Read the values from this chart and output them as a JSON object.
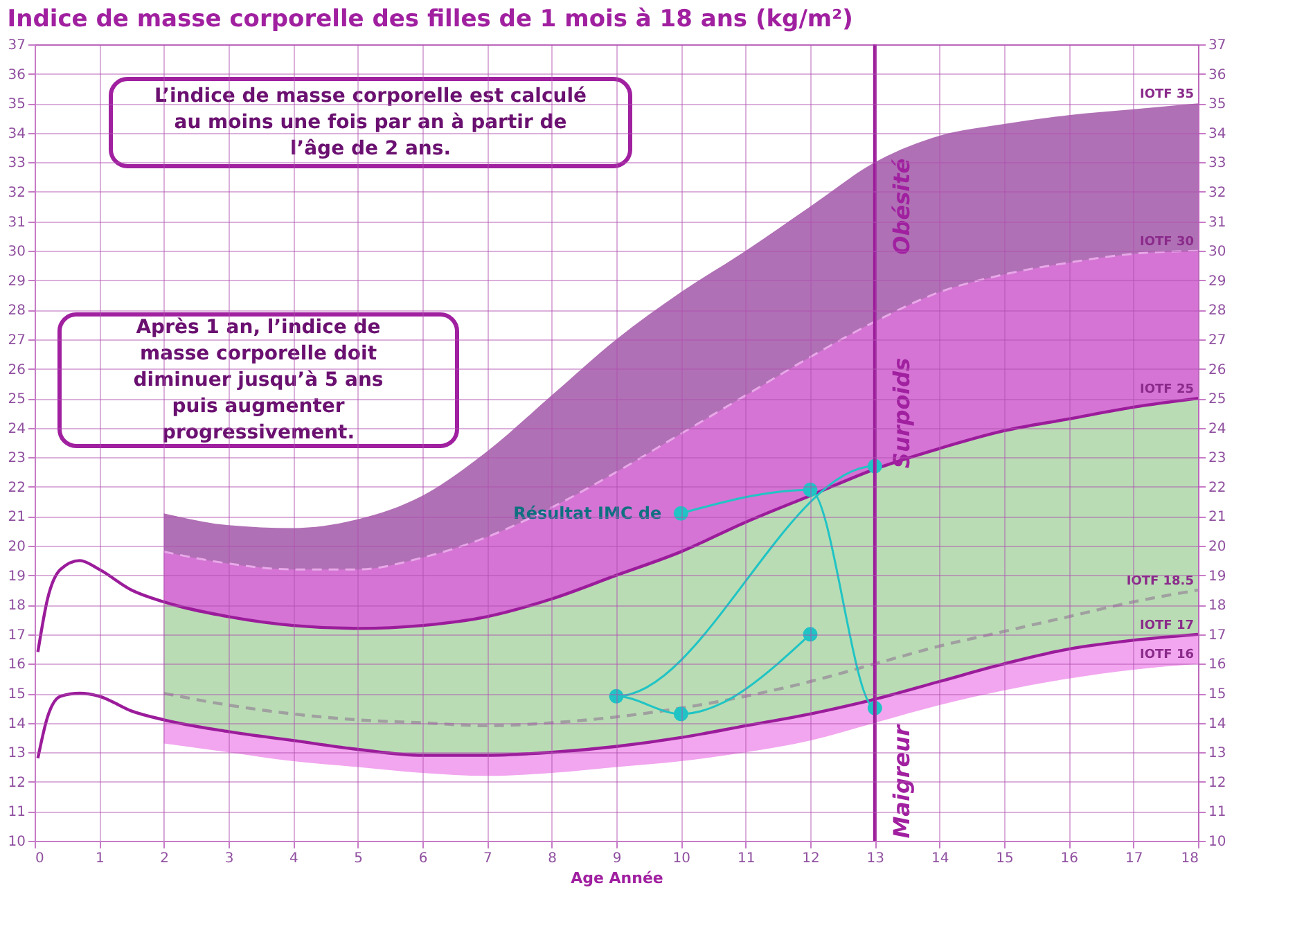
{
  "chart_data": {
    "type": "line",
    "title": "Indice de masse corporelle des filles de 1 mois à 18 ans (kg/m²)",
    "xlabel": "Age Année",
    "xlim": [
      0,
      18
    ],
    "xticks": [
      0,
      1,
      2,
      3,
      4,
      5,
      6,
      7,
      8,
      9,
      10,
      11,
      12,
      13,
      14,
      15,
      16,
      17,
      18
    ],
    "ylim": [
      10,
      37
    ],
    "yticks": [
      10,
      11,
      12,
      13,
      14,
      15,
      16,
      17,
      18,
      19,
      20,
      21,
      22,
      23,
      24,
      25,
      26,
      27,
      28,
      29,
      30,
      31,
      32,
      33,
      34,
      35,
      36,
      37
    ],
    "y2lim": [
      10,
      37
    ],
    "y2ticks": [
      10,
      11,
      12,
      13,
      14,
      15,
      16,
      17,
      18,
      19,
      20,
      21,
      22,
      23,
      24,
      25,
      26,
      27,
      28,
      29,
      30,
      31,
      32,
      33,
      34,
      35,
      36,
      37
    ],
    "grid": true,
    "series": [
      {
        "type": "area",
        "color": "#b070b5",
        "x": [
          2,
          3,
          4,
          5,
          6,
          7,
          8,
          9,
          10,
          11,
          12,
          13,
          14,
          15,
          16,
          17,
          18
        ],
        "values": [
          21.1,
          20.7,
          20.6,
          20.9,
          21.7,
          23.2,
          25.1,
          27.0,
          28.6,
          30.0,
          31.5,
          33.0,
          33.9,
          34.3,
          34.6,
          34.8,
          35.0
        ]
      },
      {
        "type": "area",
        "color": "#d574d5",
        "line_style": "dashed",
        "x": [
          2,
          3,
          4,
          5,
          6,
          7,
          8,
          9,
          10,
          11,
          12,
          13,
          14,
          15,
          16,
          17,
          18
        ],
        "values": [
          19.8,
          19.4,
          19.2,
          19.2,
          19.6,
          20.3,
          21.3,
          22.5,
          23.8,
          25.1,
          26.4,
          27.6,
          28.6,
          29.2,
          29.6,
          29.9,
          30.0
        ]
      },
      {
        "type": "area",
        "color": "#b9dcb4",
        "x": [
          2,
          3,
          4,
          5,
          6,
          7,
          8,
          9,
          10,
          11,
          12,
          13,
          14,
          15,
          16,
          17,
          18
        ],
        "values": [
          18.1,
          17.6,
          17.3,
          17.2,
          17.3,
          17.6,
          18.2,
          19.0,
          19.8,
          20.8,
          21.7,
          22.6,
          23.3,
          23.9,
          24.3,
          24.7,
          25.0
        ]
      },
      {
        "type": "area",
        "color": "#f2a6ef",
        "x": [
          2,
          3,
          4,
          5,
          6,
          7,
          8,
          9,
          10,
          11,
          12,
          13,
          14,
          15,
          16,
          17,
          18
        ],
        "values": [
          14.1,
          13.7,
          13.4,
          13.1,
          12.9,
          12.9,
          13.0,
          13.2,
          13.5,
          13.9,
          14.3,
          14.8,
          15.4,
          16.0,
          16.5,
          16.8,
          17.0
        ]
      },
      {
        "type": "area",
        "color": "#ffffff",
        "x": [
          2,
          3,
          4,
          5,
          6,
          7,
          8,
          9,
          10,
          11,
          12,
          13,
          14,
          15,
          16,
          17,
          18
        ],
        "values": [
          13.3,
          13.0,
          12.7,
          12.5,
          12.3,
          12.2,
          12.3,
          12.5,
          12.7,
          13.0,
          13.4,
          14.0,
          14.6,
          15.1,
          15.5,
          15.8,
          16.0
        ]
      },
      {
        "color": "#a0a0a0",
        "line_style": "dashed",
        "x": [
          2,
          3,
          4,
          5,
          6,
          7,
          8,
          9,
          10,
          11,
          12,
          13,
          14,
          15,
          16,
          17,
          18
        ],
        "values": [
          15.0,
          14.6,
          14.3,
          14.1,
          14.0,
          13.9,
          14.0,
          14.2,
          14.5,
          14.9,
          15.4,
          16.0,
          16.6,
          17.1,
          17.6,
          18.1,
          18.5
        ]
      },
      {
        "color": "#9b1c9b",
        "line_style": "solid",
        "x": [
          0.05,
          0.2,
          0.4,
          0.7,
          1,
          1.5,
          2,
          3,
          4,
          5,
          6,
          7,
          8,
          9,
          10,
          11,
          12,
          13,
          14,
          15,
          16,
          17,
          18
        ],
        "values": [
          16.4,
          18.2,
          19.2,
          19.5,
          19.2,
          18.5,
          18.1,
          17.6,
          17.3,
          17.2,
          17.3,
          17.6,
          18.2,
          19.0,
          19.8,
          20.8,
          21.7,
          22.6,
          23.3,
          23.9,
          24.3,
          24.7,
          25.0
        ]
      },
      {
        "color": "#9b1c9b",
        "line_style": "solid",
        "x": [
          0.05,
          0.2,
          0.4,
          0.7,
          1,
          1.5,
          2,
          3,
          4,
          5,
          6,
          7,
          8,
          9,
          10,
          11,
          12,
          13,
          14,
          15,
          16,
          17,
          18
        ],
        "values": [
          12.8,
          14.2,
          14.9,
          15.0,
          14.9,
          14.4,
          14.1,
          13.7,
          13.4,
          13.1,
          12.9,
          12.9,
          13.0,
          13.2,
          13.5,
          13.9,
          14.3,
          14.8,
          15.4,
          16.0,
          16.5,
          16.8,
          17.0
        ]
      },
      {
        "color": "#20c4c4",
        "line_style": "solid",
        "marker": "circle",
        "x": [
          10,
          12,
          13,
          13,
          9,
          10,
          12
        ],
        "values": [
          21.1,
          21.9,
          14.5,
          22.7,
          14.9,
          14.3,
          17.0
        ]
      }
    ],
    "ref_lines": [
      {
        "axis": "x",
        "value": 13,
        "color": "#9b1c9b"
      }
    ],
    "annotations": [
      "L’indice de masse corporelle est calculé au moins une fois par an à partir de l’âge de 2 ans.",
      "Après 1 an, l’indice de masse corporelle doit diminuer jusqu’à 5 ans puis augmenter progressivement.",
      {
        "text": "IOTF 35",
        "x": 18,
        "y": 35
      },
      {
        "text": "IOTF 30",
        "x": 18,
        "y": 30
      },
      {
        "text": "IOTF 25",
        "x": 18,
        "y": 25
      },
      {
        "text": "IOTF 18.5",
        "x": 18,
        "y": 18.5
      },
      {
        "text": "IOTF 17",
        "x": 18,
        "y": 17
      },
      {
        "text": "IOTF 16",
        "x": 18,
        "y": 16
      },
      {
        "text": "Obésité",
        "x": 13,
        "y": 31.5
      },
      {
        "text": "Surpoids",
        "x": 13,
        "y": 24.5
      },
      {
        "text": "Maigreur",
        "x": 13,
        "y": 12
      },
      {
        "text": "Résultat IMC de",
        "x": 10,
        "y": 21.1
      }
    ]
  }
}
